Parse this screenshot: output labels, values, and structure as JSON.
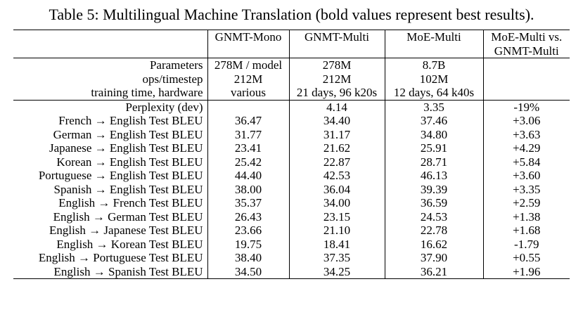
{
  "caption": "Table 5: Multilingual Machine Translation (bold values represent best results).",
  "columns": [
    "GNMT-Mono",
    "GNMT-Multi",
    "MoE-Multi",
    "MoE-Multi vs.",
    "GNMT-Multi"
  ],
  "resources": [
    {
      "label": "Parameters",
      "values": [
        "278M / model",
        "278M",
        "8.7B",
        ""
      ],
      "bold": [
        false,
        false,
        false,
        false
      ]
    },
    {
      "label": "ops/timestep",
      "values": [
        "212M",
        "212M",
        "102M",
        ""
      ],
      "bold": [
        false,
        false,
        false,
        false
      ]
    },
    {
      "label": "training time, hardware",
      "values": [
        "various",
        "21 days, 96 k20s",
        "12 days, 64 k40s",
        ""
      ],
      "bold": [
        false,
        false,
        true,
        false
      ]
    }
  ],
  "results": [
    {
      "label": "Perplexity (dev)",
      "values": [
        "",
        "4.14",
        "3.35",
        "-19%"
      ],
      "bold": [
        false,
        false,
        true,
        false
      ]
    },
    {
      "label": "French → English Test BLEU",
      "values": [
        "36.47",
        "34.40",
        "37.46",
        "+3.06"
      ],
      "bold": [
        false,
        false,
        true,
        false
      ]
    },
    {
      "label": "German → English Test BLEU",
      "values": [
        "31.77",
        "31.17",
        "34.80",
        "+3.63"
      ],
      "bold": [
        false,
        false,
        true,
        false
      ]
    },
    {
      "label": "Japanese → English Test BLEU",
      "values": [
        "23.41",
        "21.62",
        "25.91",
        "+4.29"
      ],
      "bold": [
        false,
        false,
        true,
        false
      ]
    },
    {
      "label": "Korean → English Test BLEU",
      "values": [
        "25.42",
        "22.87",
        "28.71",
        "+5.84"
      ],
      "bold": [
        false,
        false,
        true,
        false
      ]
    },
    {
      "label": "Portuguese → English Test BLEU",
      "values": [
        "44.40",
        "42.53",
        "46.13",
        "+3.60"
      ],
      "bold": [
        false,
        false,
        true,
        false
      ]
    },
    {
      "label": "Spanish → English Test BLEU",
      "values": [
        "38.00",
        "36.04",
        "39.39",
        "+3.35"
      ],
      "bold": [
        false,
        false,
        true,
        false
      ]
    },
    {
      "label": "English → French Test BLEU",
      "values": [
        "35.37",
        "34.00",
        "36.59",
        "+2.59"
      ],
      "bold": [
        false,
        false,
        true,
        false
      ]
    },
    {
      "label": "English → German Test BLEU",
      "values": [
        "26.43",
        "23.15",
        "24.53",
        "+1.38"
      ],
      "bold": [
        true,
        false,
        false,
        false
      ]
    },
    {
      "label": "English → Japanese Test BLEU",
      "values": [
        "23.66",
        "21.10",
        "22.78",
        "+1.68"
      ],
      "bold": [
        true,
        false,
        false,
        false
      ]
    },
    {
      "label": "English → Korean Test BLEU",
      "values": [
        "19.75",
        "18.41",
        "16.62",
        "-1.79"
      ],
      "bold": [
        true,
        false,
        false,
        false
      ]
    },
    {
      "label": "English → Portuguese Test BLEU",
      "values": [
        "38.40",
        "37.35",
        "37.90",
        "+0.55"
      ],
      "bold": [
        true,
        false,
        false,
        false
      ]
    },
    {
      "label": "English → Spanish Test BLEU",
      "values": [
        "34.50",
        "34.25",
        "36.21",
        "+1.96"
      ],
      "bold": [
        false,
        false,
        true,
        false
      ]
    }
  ]
}
